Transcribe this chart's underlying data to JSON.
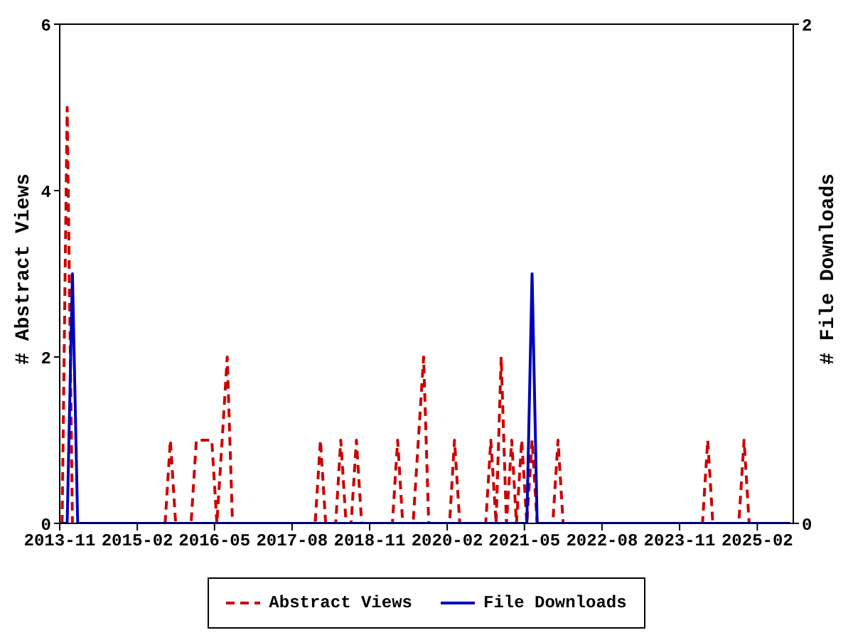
{
  "chart_data": {
    "type": "line",
    "ylabel": "# Abstract Views",
    "y2label": "# File Downloads",
    "x": [
      "2013-11-15",
      "2013-12-15",
      "2014-01-15",
      "2014-02-15",
      "2014-03-15",
      "2014-04-15",
      "2014-05-15",
      "2014-06-15",
      "2014-07-15",
      "2014-08-15",
      "2014-09-15",
      "2014-10-15",
      "2014-11-15",
      "2014-12-15",
      "2015-01-15",
      "2015-02-15",
      "2015-03-15",
      "2015-04-15",
      "2015-05-15",
      "2015-06-15",
      "2015-07-15",
      "2015-08-15",
      "2015-09-15",
      "2015-10-15",
      "2015-11-15",
      "2015-12-15",
      "2016-01-15",
      "2016-02-15",
      "2016-03-15",
      "2016-04-15",
      "2016-05-15",
      "2016-06-15",
      "2016-07-15",
      "2016-08-15",
      "2016-09-15",
      "2016-10-15",
      "2016-11-15",
      "2016-12-15",
      "2017-01-15",
      "2017-02-15",
      "2017-03-15",
      "2017-04-15",
      "2017-05-15",
      "2017-06-15",
      "2017-07-15",
      "2017-08-15",
      "2017-09-15",
      "2017-10-15",
      "2017-11-15",
      "2017-12-15",
      "2018-01-15",
      "2018-02-15",
      "2018-03-15",
      "2018-04-15",
      "2018-05-15",
      "2018-06-15",
      "2018-07-15",
      "2018-08-15",
      "2018-09-15",
      "2018-10-15",
      "2018-11-15",
      "2018-12-15",
      "2019-01-15",
      "2019-02-15",
      "2019-03-15",
      "2019-04-15",
      "2019-05-15",
      "2019-06-15",
      "2019-07-15",
      "2019-08-15",
      "2019-09-15",
      "2019-10-15",
      "2019-11-15",
      "2019-12-15",
      "2020-01-15",
      "2020-02-15",
      "2020-03-15",
      "2020-04-15",
      "2020-05-15",
      "2020-06-15",
      "2020-07-15",
      "2020-08-15",
      "2020-09-15",
      "2020-10-15",
      "2020-11-15",
      "2020-12-15",
      "2021-01-15",
      "2021-02-15",
      "2021-03-15",
      "2021-04-15",
      "2021-05-15",
      "2021-06-15",
      "2021-07-15",
      "2021-08-15",
      "2021-09-15",
      "2021-10-15",
      "2021-11-15",
      "2021-12-15",
      "2022-01-15",
      "2022-02-15",
      "2022-03-15",
      "2022-04-15",
      "2022-05-15",
      "2022-06-15",
      "2022-07-15",
      "2022-08-15",
      "2022-09-15",
      "2022-10-15",
      "2022-11-15",
      "2022-12-15",
      "2023-01-15",
      "2023-02-15",
      "2023-03-15",
      "2023-04-15",
      "2023-05-15",
      "2023-06-15",
      "2023-07-15",
      "2023-08-15",
      "2023-09-15",
      "2023-10-15",
      "2023-11-15",
      "2023-12-15",
      "2024-01-15",
      "2024-02-15",
      "2024-03-15",
      "2024-04-15",
      "2024-05-15",
      "2024-06-15",
      "2024-07-15",
      "2024-08-15",
      "2024-09-15",
      "2024-10-15",
      "2024-11-15",
      "2024-12-15",
      "2025-01-15",
      "2025-02-15",
      "2025-03-15",
      "2025-04-15",
      "2025-05-15",
      "2025-06-15",
      "2025-07-15",
      "2025-08-15"
    ],
    "series": [
      {
        "name": "Abstract Views",
        "color": "#cc0000",
        "line_style": "dashed",
        "values": [
          0,
          5,
          0,
          0,
          0,
          0,
          0,
          0,
          0,
          0,
          0,
          0,
          0,
          0,
          0,
          0,
          0,
          0,
          0,
          0,
          0,
          1,
          0,
          0,
          0,
          0,
          1,
          1,
          1,
          1,
          0,
          1,
          2,
          0,
          0,
          0,
          0,
          0,
          0,
          0,
          0,
          0,
          0,
          0,
          0,
          0,
          0,
          0,
          0,
          0,
          1,
          0,
          0,
          0,
          1,
          0,
          0,
          1,
          0,
          0,
          0,
          0,
          0,
          0,
          0,
          1,
          0,
          0,
          0,
          1,
          2,
          0,
          0,
          0,
          0,
          0,
          1,
          0,
          0,
          0,
          0,
          0,
          0,
          1,
          0,
          2,
          0,
          1,
          0,
          1,
          0,
          1,
          0,
          0,
          0,
          0,
          1,
          0,
          0,
          0,
          0,
          0,
          0,
          0,
          0,
          0,
          0,
          0,
          0,
          0,
          0,
          0,
          0,
          0,
          0,
          0,
          0,
          0,
          0,
          0,
          0,
          0,
          0,
          0,
          0,
          1,
          0,
          0,
          0,
          0,
          0,
          0,
          1,
          0,
          0,
          0,
          0,
          null,
          null,
          null,
          null,
          null
        ]
      },
      {
        "name": "File Downloads",
        "color": "#0000bb",
        "line_style": "solid",
        "axis": "y2",
        "values": [
          0,
          0,
          1,
          0,
          0,
          0,
          0,
          0,
          0,
          0,
          0,
          0,
          0,
          0,
          0,
          0,
          0,
          0,
          0,
          0,
          0,
          0,
          0,
          0,
          0,
          0,
          0,
          0,
          0,
          0,
          0,
          0,
          0,
          0,
          0,
          0,
          0,
          0,
          0,
          0,
          0,
          0,
          0,
          0,
          0,
          0,
          0,
          0,
          0,
          0,
          0,
          0,
          0,
          0,
          0,
          0,
          0,
          0,
          0,
          0,
          0,
          0,
          0,
          0,
          0,
          0,
          0,
          0,
          0,
          0,
          0,
          0,
          0,
          0,
          0,
          0,
          0,
          0,
          0,
          0,
          0,
          0,
          0,
          0,
          0,
          0,
          0,
          0,
          0,
          0,
          0,
          1,
          0,
          0,
          0,
          0,
          0,
          0,
          0,
          0,
          0,
          0,
          0,
          0,
          0,
          0,
          0,
          0,
          0,
          0,
          0,
          0,
          0,
          0,
          0,
          0,
          0,
          0,
          0,
          0,
          0,
          0,
          0,
          0,
          0,
          0,
          0,
          0,
          0,
          0,
          0,
          0,
          0,
          0,
          0,
          0,
          0,
          0,
          0,
          0,
          0,
          0
        ]
      }
    ],
    "xlim": [
      "2013-11",
      "2025-09"
    ],
    "xticks": [
      "2013-11",
      "2015-02",
      "2016-05",
      "2017-08",
      "2018-11",
      "2020-02",
      "2021-05",
      "2022-08",
      "2023-11",
      "2025-02"
    ],
    "ylim": [
      0,
      6
    ],
    "yticks": [
      0,
      2,
      4,
      6
    ],
    "y2lim": [
      0,
      2
    ],
    "y2ticks": [
      0,
      2
    ],
    "grid": false,
    "legend": "bottom",
    "marker": "none"
  }
}
